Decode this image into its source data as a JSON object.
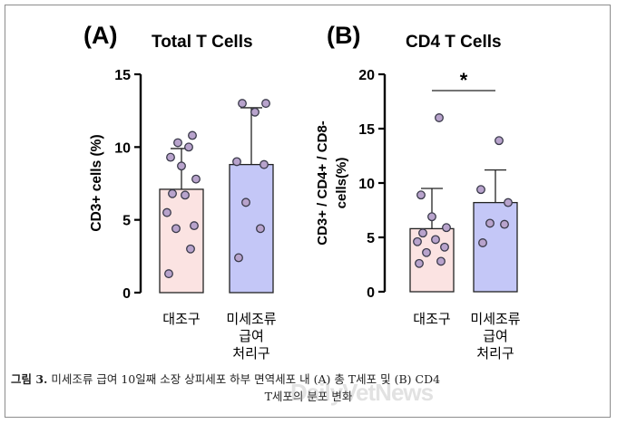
{
  "caption": {
    "label": "그림 3.",
    "text": "미세조류 급여 10일째 소장 상피세포 하부 면역세포 내 (A) 총 T세포 및 (B) CD4",
    "line2": "T세포의 분포 변화"
  },
  "watermark": "DailyVetNews",
  "colors": {
    "control_fill": "#fbe3e2",
    "treat_fill": "#c4c7f7",
    "point_fill": "#b8a3cc",
    "point_stroke": "#3a3a4a",
    "axis": "#000000"
  },
  "chart_data": [
    {
      "type": "bar",
      "panel_label": "(A)",
      "title": "Total T Cells",
      "ylabel": "CD3+ cells (%)",
      "xlabel": "",
      "ylim": [
        0,
        15
      ],
      "yticks": [
        0,
        5,
        10,
        15
      ],
      "categories": [
        "대조구",
        "미세조류\n급여\n처리구"
      ],
      "values": [
        7.1,
        8.8
      ],
      "error_upper": [
        9.9,
        12.7
      ],
      "points": [
        [
          1.3,
          3.0,
          4.4,
          4.6,
          5.5,
          6.7,
          6.8,
          7.8,
          8.7,
          9.3,
          10.0,
          10.3,
          10.8
        ],
        [
          2.4,
          4.4,
          6.2,
          8.8,
          9.0,
          12.4,
          13.0,
          13.0
        ]
      ],
      "significance": ""
    },
    {
      "type": "bar",
      "panel_label": "(B)",
      "title": "CD4 T Cells",
      "ylabel": "CD3+ / CD4+ / CD8-\ncells(%)",
      "xlabel": "",
      "ylim": [
        0,
        20
      ],
      "yticks": [
        0,
        5,
        10,
        15,
        20
      ],
      "categories": [
        "대조구",
        "미세조류\n급여\n처리구"
      ],
      "values": [
        5.8,
        8.2
      ],
      "error_upper": [
        9.5,
        11.2
      ],
      "points": [
        [
          2.6,
          2.8,
          3.6,
          4.1,
          4.6,
          4.8,
          5.4,
          5.9,
          6.9,
          8.9,
          16.0
        ],
        [
          4.5,
          6.2,
          6.3,
          8.2,
          9.4,
          13.9
        ]
      ],
      "significance": "*"
    }
  ]
}
